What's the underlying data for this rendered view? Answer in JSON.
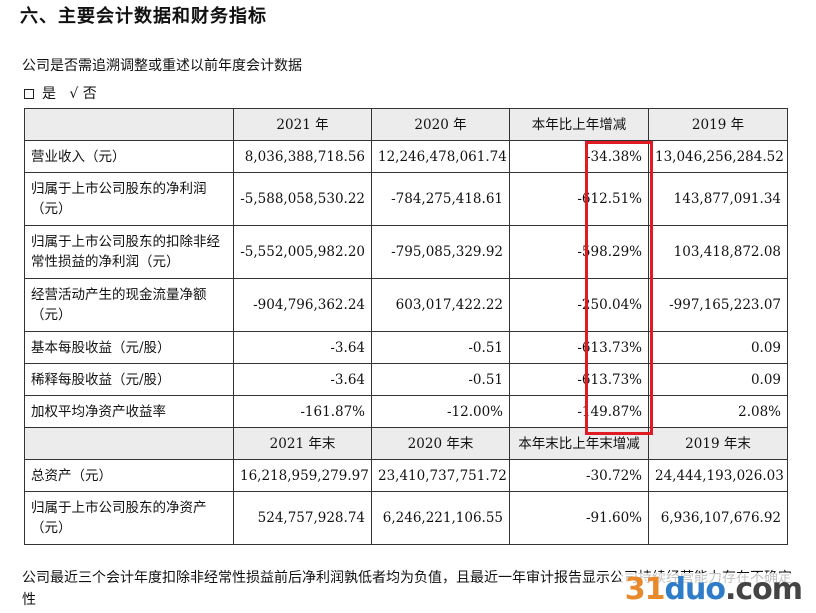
{
  "heading": "六、主要会计数据和财务指标",
  "question": "公司是否需追溯调整或重述以前年度会计数据",
  "answer": {
    "box": "□",
    "yes": "是",
    "check": "√",
    "no": "否"
  },
  "table1": {
    "columns": [
      "",
      "2021 年",
      "2020 年",
      "本年比上年增减",
      "2019 年"
    ],
    "rows": [
      {
        "label": "营业收入（元）",
        "v2021": "8,036,388,718.56",
        "v2020": "12,246,478,061.74",
        "change": "-34.38%",
        "v2019": "13,046,256,284.52"
      },
      {
        "label": "归属于上市公司股东的净利润（元）",
        "v2021": "-5,588,058,530.22",
        "v2020": "-784,275,418.61",
        "change": "-612.51%",
        "v2019": "143,877,091.34"
      },
      {
        "label": "归属于上市公司股东的扣除非经常性损益的净利润（元）",
        "v2021": "-5,552,005,982.20",
        "v2020": "-795,085,329.92",
        "change": "-598.29%",
        "v2019": "103,418,872.08"
      },
      {
        "label": "经营活动产生的现金流量净额（元）",
        "v2021": "-904,796,362.24",
        "v2020": "603,017,422.22",
        "change": "-250.04%",
        "v2019": "-997,165,223.07"
      },
      {
        "label": "基本每股收益（元/股）",
        "v2021": "-3.64",
        "v2020": "-0.51",
        "change": "-613.73%",
        "v2019": "0.09"
      },
      {
        "label": "稀释每股收益（元/股）",
        "v2021": "-3.64",
        "v2020": "-0.51",
        "change": "-613.73%",
        "v2019": "0.09"
      },
      {
        "label": "加权平均净资产收益率",
        "v2021": "-161.87%",
        "v2020": "-12.00%",
        "change": "-149.87%",
        "v2019": "2.08%"
      }
    ]
  },
  "table2": {
    "columns": [
      "",
      "2021 年末",
      "2020 年末",
      "本年末比上年末增减",
      "2019 年末"
    ],
    "rows": [
      {
        "label": "总资产（元）",
        "v2021": "16,218,959,279.97",
        "v2020": "23,410,737,751.72",
        "change": "-30.72%",
        "v2019": "24,444,193,026.03"
      },
      {
        "label": "归属于上市公司股东的净资产（元）",
        "v2021": "524,757,928.74",
        "v2020": "6,246,221,106.55",
        "change": "-91.60%",
        "v2019": "6,936,107,676.92"
      }
    ]
  },
  "note": "公司最近三个会计年度扣除非经常性损益前后净利润孰低者均为负值，且最近一年审计报告显示公司持续经营能力存在不确定性",
  "watermark": {
    "part1": "31",
    "part2": "duo",
    "part3": ".com"
  },
  "colors": {
    "highlight": "#e01b24",
    "header_bg": "#ececec"
  }
}
